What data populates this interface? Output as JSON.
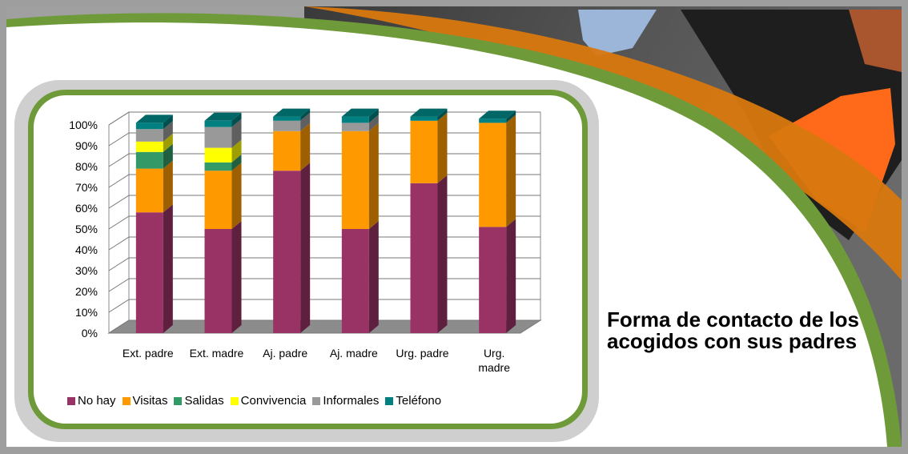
{
  "slide": {
    "title": "Forma de contacto de los acogidos con sus padres",
    "colors": {
      "green": "#6f9a3a",
      "orange": "#d9780f"
    }
  },
  "chart_data": {
    "type": "bar",
    "stacked": true,
    "three_d": true,
    "categories": [
      "Ext. padre",
      "Ext. madre",
      "Aj.  padre",
      "Aj. madre",
      "Urg. padre",
      "Urg. madre"
    ],
    "series": [
      {
        "name": "No hay",
        "color": "#993366",
        "values": [
          58,
          50,
          78,
          50,
          72,
          51
        ]
      },
      {
        "name": "Visitas",
        "color": "#ff9900",
        "values": [
          21,
          28,
          19,
          47,
          30,
          50
        ]
      },
      {
        "name": "Salidas",
        "color": "#339966",
        "values": [
          8,
          4,
          0,
          0,
          0,
          0
        ]
      },
      {
        "name": "Convivencia",
        "color": "#ffff00",
        "values": [
          5,
          7,
          0,
          0,
          0,
          0
        ]
      },
      {
        "name": "Informales",
        "color": "#999999",
        "values": [
          6,
          10,
          5,
          4,
          0,
          0
        ]
      },
      {
        "name": "Teléfono",
        "color": "#008080",
        "values": [
          3,
          3,
          2,
          3,
          2,
          2
        ]
      }
    ],
    "yticks": [
      "0%",
      "10%",
      "20%",
      "30%",
      "40%",
      "50%",
      "60%",
      "70%",
      "80%",
      "90%",
      "100%"
    ],
    "ylim": [
      0,
      100
    ],
    "grid": true,
    "legend_position": "bottom"
  }
}
